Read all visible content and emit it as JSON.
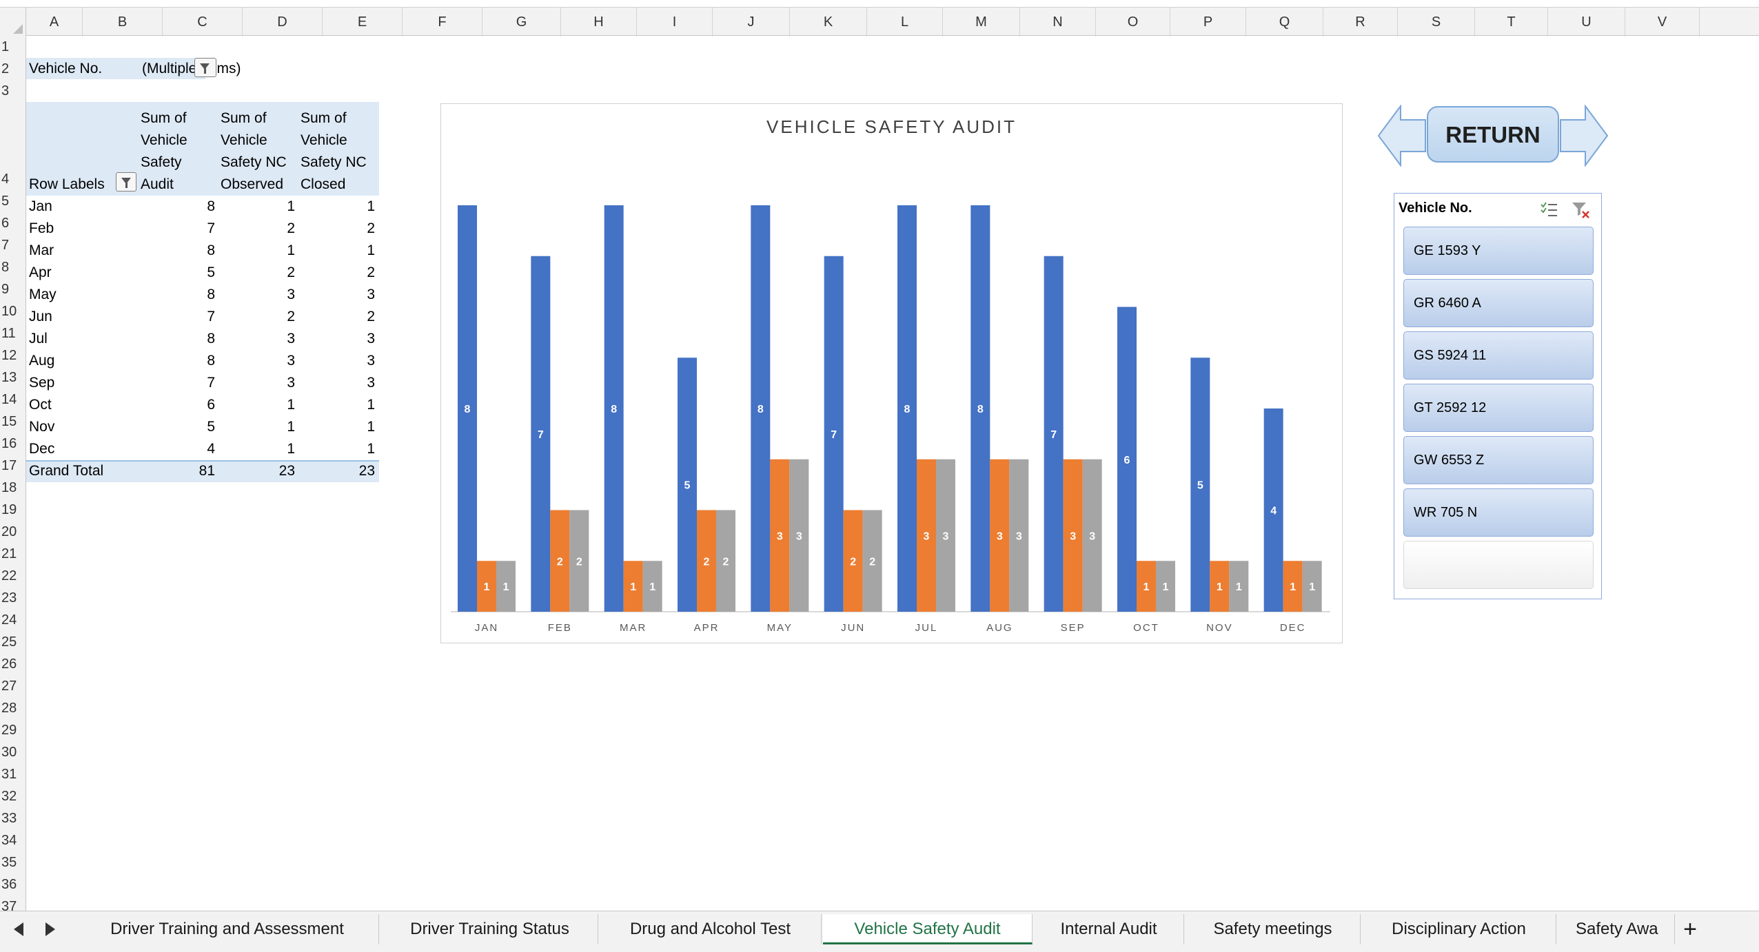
{
  "columns": [
    "A",
    "B",
    "C",
    "D",
    "E",
    "F",
    "G",
    "H",
    "I",
    "J",
    "K",
    "L",
    "M",
    "N",
    "O",
    "P",
    "Q",
    "R",
    "S",
    "T",
    "U",
    "V"
  ],
  "rows": [
    "1",
    "2",
    "3",
    "4",
    "5",
    "6",
    "7",
    "8",
    "9",
    "10",
    "11",
    "12",
    "13",
    "14",
    "15",
    "16",
    "17",
    "18",
    "19",
    "20",
    "21",
    "22",
    "23",
    "24",
    "25",
    "26",
    "27",
    "28",
    "29",
    "30",
    "31",
    "32",
    "33",
    "34",
    "35",
    "36",
    "37"
  ],
  "filter": {
    "label": "Vehicle No.",
    "value": "(Multiple Items)"
  },
  "pivot": {
    "row_labels": "Row Labels",
    "headers": [
      [
        "Sum of",
        "Vehicle",
        "Safety",
        "Audit"
      ],
      [
        "Sum of",
        "Vehicle",
        "Safety NC",
        "Observed"
      ],
      [
        "Sum of",
        "Vehicle",
        "Safety NC",
        "Closed"
      ]
    ],
    "rows": [
      {
        "label": "Jan",
        "audit": "8",
        "observed": "1",
        "closed": "1"
      },
      {
        "label": "Feb",
        "audit": "7",
        "observed": "2",
        "closed": "2"
      },
      {
        "label": "Mar",
        "audit": "8",
        "observed": "1",
        "closed": "1"
      },
      {
        "label": "Apr",
        "audit": "5",
        "observed": "2",
        "closed": "2"
      },
      {
        "label": "May",
        "audit": "8",
        "observed": "3",
        "closed": "3"
      },
      {
        "label": "Jun",
        "audit": "7",
        "observed": "2",
        "closed": "2"
      },
      {
        "label": "Jul",
        "audit": "8",
        "observed": "3",
        "closed": "3"
      },
      {
        "label": "Aug",
        "audit": "8",
        "observed": "3",
        "closed": "3"
      },
      {
        "label": "Sep",
        "audit": "7",
        "observed": "3",
        "closed": "3"
      },
      {
        "label": "Oct",
        "audit": "6",
        "observed": "1",
        "closed": "1"
      },
      {
        "label": "Nov",
        "audit": "5",
        "observed": "1",
        "closed": "1"
      },
      {
        "label": "Dec",
        "audit": "4",
        "observed": "1",
        "closed": "1"
      }
    ],
    "grand_total": {
      "label": "Grand Total",
      "audit": "81",
      "observed": "23",
      "closed": "23"
    }
  },
  "chart_data": {
    "type": "bar",
    "title": "VEHICLE SAFETY AUDIT",
    "categories": [
      "JAN",
      "FEB",
      "MAR",
      "APR",
      "MAY",
      "JUN",
      "JUL",
      "AUG",
      "SEP",
      "OCT",
      "NOV",
      "DEC"
    ],
    "series": [
      {
        "values": [
          8,
          7,
          8,
          5,
          8,
          7,
          8,
          8,
          7,
          6,
          5,
          4
        ],
        "color": "#4472c4"
      },
      {
        "values": [
          1,
          2,
          1,
          2,
          3,
          2,
          3,
          3,
          3,
          1,
          1,
          1
        ],
        "color": "#ed7d31"
      },
      {
        "values": [
          1,
          2,
          1,
          2,
          3,
          2,
          3,
          3,
          3,
          1,
          1,
          1
        ],
        "color": "#a5a5a5"
      }
    ],
    "ylim": [
      0,
      8
    ],
    "grid": false,
    "data_labels": true
  },
  "return_button": {
    "label": "RETURN"
  },
  "slicer": {
    "title": "Vehicle No.",
    "items": [
      "GE 1593 Y",
      "GR 6460 A",
      "GS 5924 11",
      "GT 2592  12",
      "GW 6553 Z",
      "WR 705 N"
    ],
    "icons": [
      "multi-select-icon",
      "clear-filter-icon"
    ]
  },
  "sheet_tabs": {
    "tabs": [
      "Driver Training and Assessment",
      "Driver Training Status",
      "Drug and Alcohol Test",
      "Vehicle Safety Audit",
      "Internal Audit",
      "Safety meetings",
      "Disciplinary Action",
      "Safety Awa"
    ],
    "active": "Vehicle Safety Audit",
    "add_label": "+"
  }
}
